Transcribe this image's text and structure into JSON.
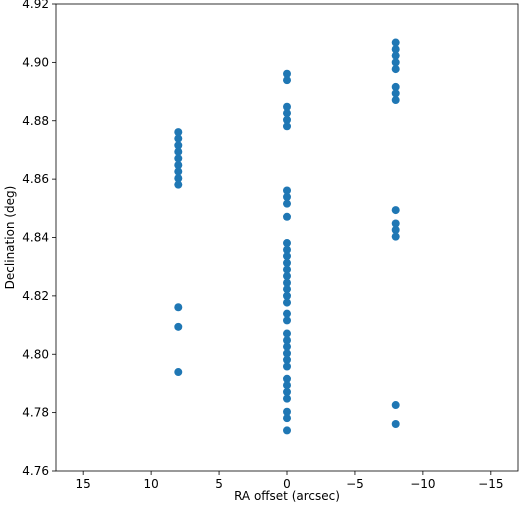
{
  "chart_data": {
    "type": "scatter",
    "title": "",
    "xlabel": "RA offset (arcsec)",
    "ylabel": "Declination (deg)",
    "xlim": [
      17,
      -17
    ],
    "ylim": [
      4.76,
      4.92
    ],
    "x_inverted": true,
    "grid": false,
    "legend": "none",
    "x_ticks": [
      15,
      10,
      5,
      0,
      -5,
      -10,
      -15
    ],
    "x_tick_labels": [
      "15",
      "10",
      "5",
      "0",
      "−5",
      "−10",
      "−15"
    ],
    "y_ticks": [
      4.76,
      4.78,
      4.8,
      4.82,
      4.84,
      4.86,
      4.88,
      4.9,
      4.92
    ],
    "y_tick_labels": [
      "4.76",
      "4.78",
      "4.80",
      "4.82",
      "4.84",
      "4.86",
      "4.88",
      "4.90",
      "4.92"
    ],
    "marker_color": "#1f77b4",
    "series": [
      {
        "points": [
          {
            "x": 8,
            "y": 4.8761
          },
          {
            "x": 8,
            "y": 4.8739
          },
          {
            "x": 8,
            "y": 4.8716
          },
          {
            "x": 8,
            "y": 4.8694
          },
          {
            "x": 8,
            "y": 4.8671
          },
          {
            "x": 8,
            "y": 4.8648
          },
          {
            "x": 8,
            "y": 4.8626
          },
          {
            "x": 8,
            "y": 4.8603
          },
          {
            "x": 8,
            "y": 4.8581
          },
          {
            "x": 8,
            "y": 4.8161
          },
          {
            "x": 8,
            "y": 4.8094
          },
          {
            "x": 8,
            "y": 4.7939
          },
          {
            "x": 0,
            "y": 4.8961
          },
          {
            "x": 0,
            "y": 4.8939
          },
          {
            "x": 0,
            "y": 4.8848
          },
          {
            "x": 0,
            "y": 4.8826
          },
          {
            "x": 0,
            "y": 4.8803
          },
          {
            "x": 0,
            "y": 4.8781
          },
          {
            "x": 0,
            "y": 4.8561
          },
          {
            "x": 0,
            "y": 4.8539
          },
          {
            "x": 0,
            "y": 4.8516
          },
          {
            "x": 0,
            "y": 4.8471
          },
          {
            "x": 0,
            "y": 4.8381
          },
          {
            "x": 0,
            "y": 4.8358
          },
          {
            "x": 0,
            "y": 4.8336
          },
          {
            "x": 0,
            "y": 4.8313
          },
          {
            "x": 0,
            "y": 4.829
          },
          {
            "x": 0,
            "y": 4.8268
          },
          {
            "x": 0,
            "y": 4.8245
          },
          {
            "x": 0,
            "y": 4.8223
          },
          {
            "x": 0,
            "y": 4.82
          },
          {
            "x": 0,
            "y": 4.8177
          },
          {
            "x": 0,
            "y": 4.8139
          },
          {
            "x": 0,
            "y": 4.8116
          },
          {
            "x": 0,
            "y": 4.8071
          },
          {
            "x": 0,
            "y": 4.8048
          },
          {
            "x": 0,
            "y": 4.8026
          },
          {
            "x": 0,
            "y": 4.8003
          },
          {
            "x": 0,
            "y": 4.7981
          },
          {
            "x": 0,
            "y": 4.7958
          },
          {
            "x": 0,
            "y": 4.7916
          },
          {
            "x": 0,
            "y": 4.7894
          },
          {
            "x": 0,
            "y": 4.7871
          },
          {
            "x": 0,
            "y": 4.7848
          },
          {
            "x": 0,
            "y": 4.7803
          },
          {
            "x": 0,
            "y": 4.7781
          },
          {
            "x": 0,
            "y": 4.7739
          },
          {
            "x": -8,
            "y": 4.9068
          },
          {
            "x": -8,
            "y": 4.9045
          },
          {
            "x": -8,
            "y": 4.9023
          },
          {
            "x": -8,
            "y": 4.9
          },
          {
            "x": -8,
            "y": 4.8977
          },
          {
            "x": -8,
            "y": 4.8916
          },
          {
            "x": -8,
            "y": 4.8894
          },
          {
            "x": -8,
            "y": 4.8871
          },
          {
            "x": -8,
            "y": 4.8494
          },
          {
            "x": -8,
            "y": 4.8448
          },
          {
            "x": -8,
            "y": 4.8426
          },
          {
            "x": -8,
            "y": 4.8403
          },
          {
            "x": -8,
            "y": 4.7826
          },
          {
            "x": -8,
            "y": 4.7761
          }
        ]
      }
    ]
  }
}
